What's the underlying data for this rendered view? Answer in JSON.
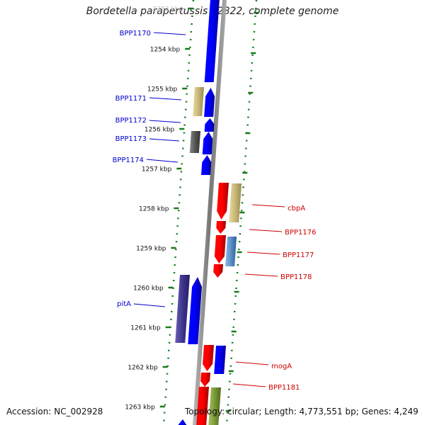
{
  "title": "Bordetella parapertussis 12822, complete genome",
  "accession": "Accession: NC_002928",
  "topology": "Topology: circular; Length: 4,773,551 bp; Genes: 4,249",
  "colors": {
    "forward_strand": "#0000ff",
    "reverse_strand": "#ff0000",
    "forward_label": "#0000cc",
    "reverse_label": "#cc0000",
    "ticks": "#1a7a1a",
    "backbone": "#888888"
  },
  "ticks": [
    {
      "label": "1253 kbp",
      "faded": true
    },
    {
      "label": "1254 kbp"
    },
    {
      "label": "1255 kbp"
    },
    {
      "label": "1256 kbp"
    },
    {
      "label": "1257 kbp"
    },
    {
      "label": "1258 kbp"
    },
    {
      "label": "1259 kbp"
    },
    {
      "label": "1260 kbp"
    },
    {
      "label": "1261 kbp"
    },
    {
      "label": "1262 kbp"
    },
    {
      "label": "1263 kbp"
    }
  ],
  "gene_labels": [
    {
      "name": "BPP1170",
      "strand": "forward"
    },
    {
      "name": "BPP1171",
      "strand": "forward"
    },
    {
      "name": "BPP1172",
      "strand": "forward"
    },
    {
      "name": "BPP1173",
      "strand": "forward"
    },
    {
      "name": "BPP1174",
      "strand": "forward"
    },
    {
      "name": "cbpA",
      "strand": "reverse"
    },
    {
      "name": "BPP1176",
      "strand": "reverse"
    },
    {
      "name": "BPP1177",
      "strand": "reverse"
    },
    {
      "name": "BPP1178",
      "strand": "reverse"
    },
    {
      "name": "pitA",
      "strand": "forward"
    },
    {
      "name": "mogA",
      "strand": "reverse"
    },
    {
      "name": "BPP1181",
      "strand": "reverse"
    }
  ]
}
